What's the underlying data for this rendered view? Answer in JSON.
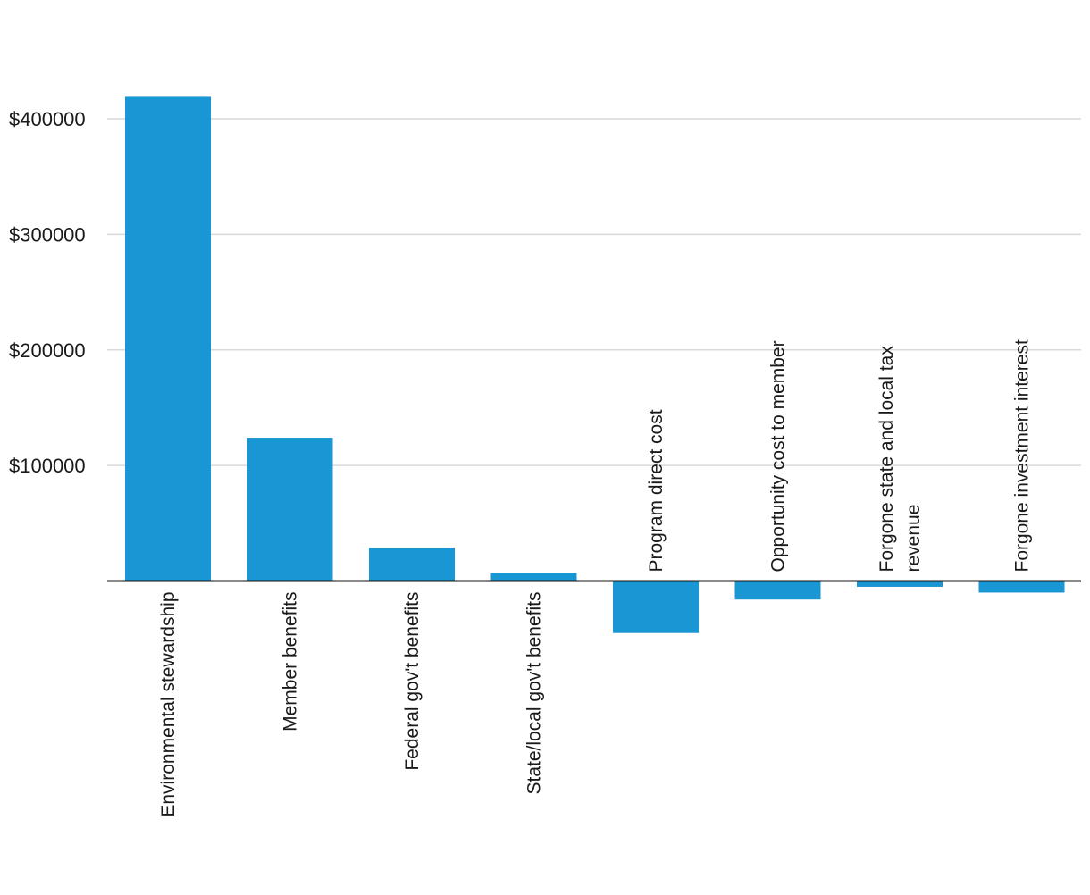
{
  "chart_data": {
    "type": "bar",
    "title": "",
    "xlabel": "",
    "ylabel": "",
    "categories": [
      "Environmental stewardship",
      "Member benefits",
      "Federal gov't benefits",
      "State/local gov't benefits",
      "Program direct cost",
      "Opportunity cost to member",
      "Forgone state and local tax revenue",
      "Forgone investment interest"
    ],
    "label_lines": [
      [
        "Environmental stewardship"
      ],
      [
        "Member benefits"
      ],
      [
        "Federal gov't benefits"
      ],
      [
        "State/local gov't benefits"
      ],
      [
        "Program direct cost"
      ],
      [
        "Opportunity cost to member"
      ],
      [
        "Forgone state and local tax",
        "revenue"
      ],
      [
        "Forgone investment interest"
      ]
    ],
    "values": [
      419000,
      124000,
      29000,
      7000,
      -45000,
      -16000,
      -5000,
      -10000
    ],
    "ylim": [
      -45000,
      420000
    ],
    "yticks": [
      100000,
      200000,
      300000,
      400000
    ],
    "ytick_labels": [
      "$100000",
      "$200000",
      "$300000",
      "$400000"
    ],
    "grid": true,
    "legend": "none",
    "bar_color": "#1996d4"
  }
}
